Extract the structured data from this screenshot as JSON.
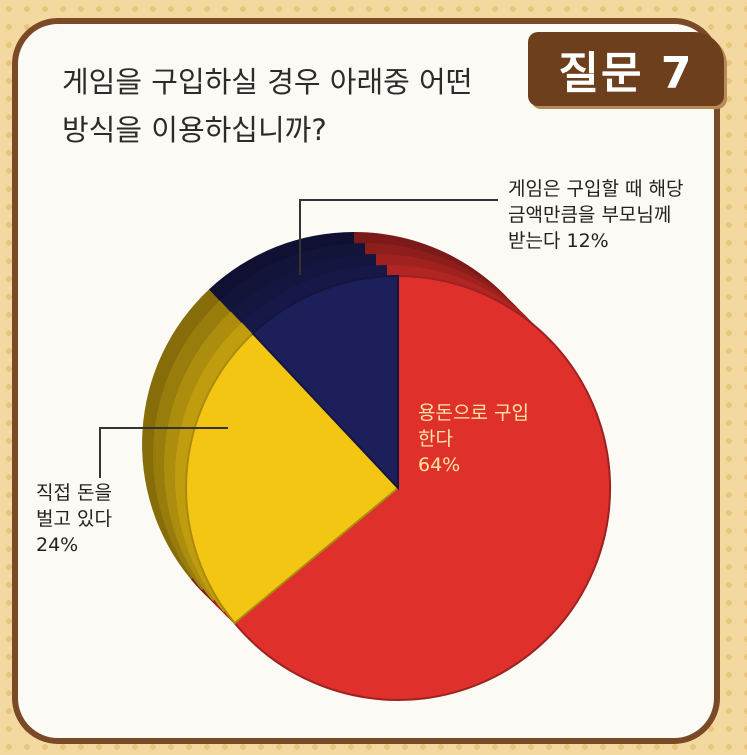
{
  "badge": "질문 7",
  "question": [
    "게임을 구입하실 경우 아래중 어떤",
    "방식을 이용하십니까?"
  ],
  "chart_data": {
    "type": "pie",
    "title": "게임을 구입하실 경우 아래중 어떤 방식을 이용하십니까?",
    "slices": [
      {
        "label": "용돈으로 구입 한다",
        "value": 64,
        "color": "#e0302c"
      },
      {
        "label": "직접 돈을 벌고 있다",
        "value": 24,
        "color": "#f3c613"
      },
      {
        "label": "게임은 구입할 때 해당 금액만큼을 부모님께 받는다",
        "value": 12,
        "color": "#1d1f5a"
      }
    ]
  },
  "labels": {
    "parent": [
      "게임은 구입할 때 해당",
      "금액만큼을 부모님께",
      "받는다 12%"
    ],
    "allowance": [
      "용돈으로 구입",
      "한다",
      "64%"
    ],
    "earn": [
      "직접 돈을",
      "벌고 있다",
      "24%"
    ]
  }
}
